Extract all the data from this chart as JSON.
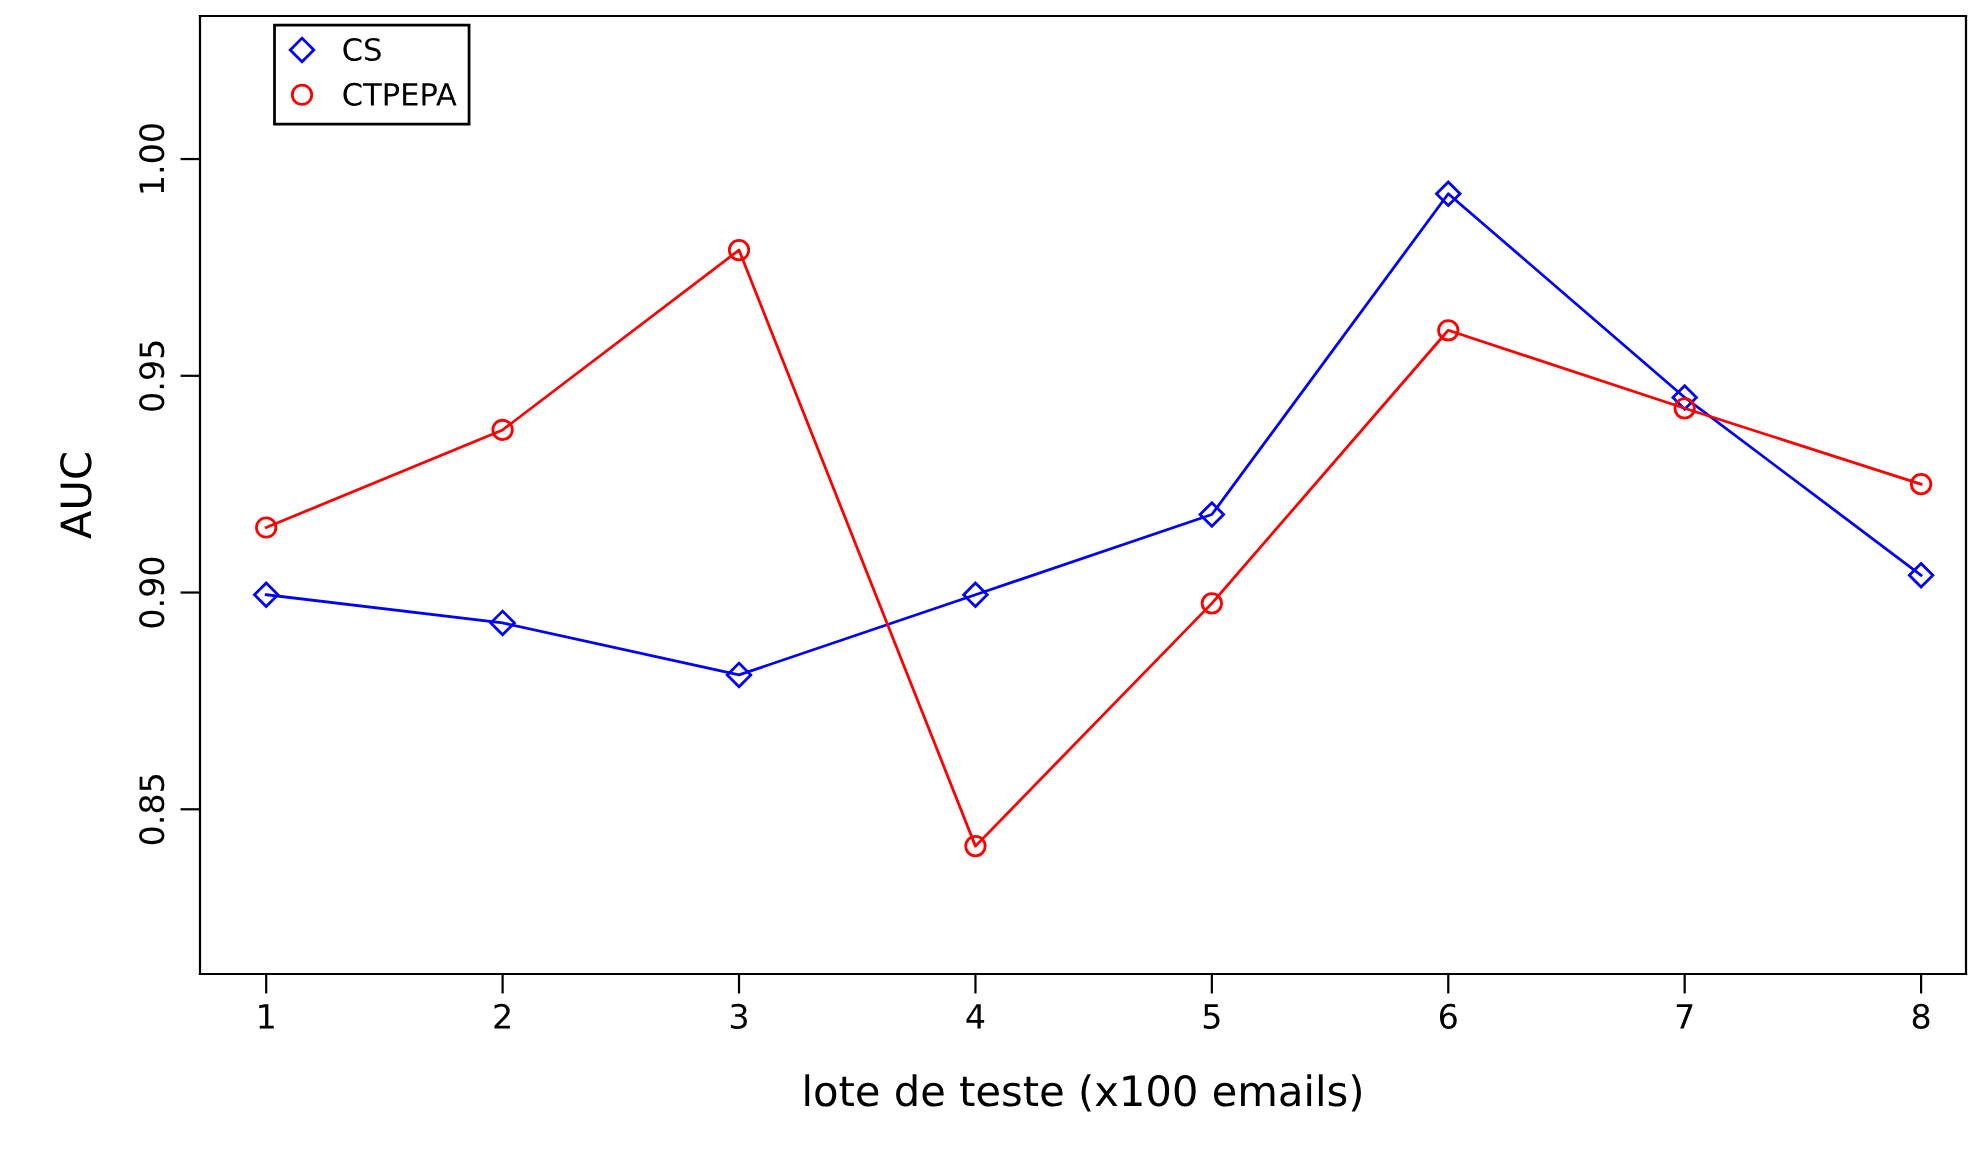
{
  "chart_data": {
    "type": "line",
    "xlabel": "lote de teste (x100 emails)",
    "ylabel": "AUC",
    "x": [
      1,
      2,
      3,
      4,
      5,
      6,
      7,
      8
    ],
    "series": [
      {
        "name": "CS",
        "color": "#0000ff",
        "marker": "diamond",
        "values": [
          0.8995,
          0.893,
          0.881,
          0.8995,
          0.918,
          0.992,
          0.945,
          0.904
        ]
      },
      {
        "name": "CTPEPA",
        "color": "#ff0000",
        "marker": "circle",
        "values": [
          0.915,
          0.9375,
          0.979,
          0.8415,
          0.8975,
          0.9605,
          0.9425,
          0.925
        ]
      }
    ],
    "xlim": [
      0.72,
      8.19
    ],
    "xticks": [
      1,
      2,
      3,
      4,
      5,
      6,
      7,
      8
    ],
    "ylim": [
      0.812,
      1.033
    ],
    "yticks": [
      0.85,
      {
        "value": 0.9,
        "label": "0.90"
      },
      0.95,
      {
        "value": 1.0,
        "label": "1.00"
      }
    ],
    "grid": false,
    "legend": "top left",
    "line_style": "solid"
  }
}
